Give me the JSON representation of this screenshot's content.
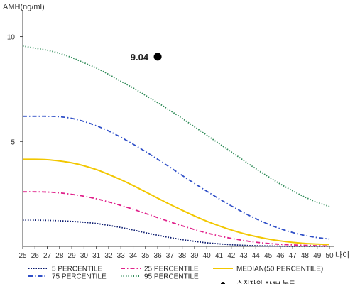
{
  "chart_data": {
    "type": "line",
    "ylabel": "AMH(ng/ml)",
    "xlabel": "나이",
    "xlim": [
      25,
      50
    ],
    "ylim": [
      0,
      11
    ],
    "yticks": [
      5,
      10
    ],
    "x": [
      25,
      26,
      27,
      28,
      29,
      30,
      31,
      32,
      33,
      34,
      35,
      36,
      37,
      38,
      39,
      40,
      41,
      42,
      43,
      44,
      45,
      46,
      47,
      48,
      49,
      50
    ],
    "grid": false,
    "legend_position": "bottom",
    "series": [
      {
        "name": "5 PERCENTILE",
        "color": "#0a1a6e",
        "style": "dotted",
        "values": [
          1.25,
          1.25,
          1.24,
          1.22,
          1.19,
          1.15,
          1.09,
          1.0,
          0.9,
          0.78,
          0.65,
          0.53,
          0.42,
          0.32,
          0.24,
          0.17,
          0.12,
          0.08,
          0.05,
          0.03,
          0.02,
          0.01,
          0.0,
          0.0,
          0.0,
          0.0
        ]
      },
      {
        "name": "25 PERCENTILE",
        "color": "#e0208a",
        "style": "dashdot",
        "values": [
          2.6,
          2.6,
          2.59,
          2.55,
          2.48,
          2.39,
          2.27,
          2.12,
          1.95,
          1.77,
          1.57,
          1.37,
          1.17,
          0.98,
          0.8,
          0.64,
          0.5,
          0.38,
          0.28,
          0.2,
          0.14,
          0.1,
          0.07,
          0.05,
          0.03,
          0.02
        ]
      },
      {
        "name": "MEDIAN(50 PERCENTILE)",
        "color": "#f2c700",
        "style": "solid",
        "values": [
          4.15,
          4.15,
          4.13,
          4.07,
          3.98,
          3.84,
          3.66,
          3.43,
          3.18,
          2.9,
          2.6,
          2.3,
          2.0,
          1.72,
          1.45,
          1.2,
          0.98,
          0.78,
          0.61,
          0.47,
          0.35,
          0.26,
          0.19,
          0.14,
          0.11,
          0.09
        ]
      },
      {
        "name": "75 PERCENTILE",
        "color": "#3050c8",
        "style": "dashdot",
        "values": [
          6.2,
          6.2,
          6.2,
          6.18,
          6.1,
          5.95,
          5.75,
          5.5,
          5.2,
          4.87,
          4.52,
          4.15,
          3.77,
          3.38,
          3.0,
          2.63,
          2.27,
          1.93,
          1.61,
          1.32,
          1.06,
          0.84,
          0.66,
          0.52,
          0.42,
          0.35
        ]
      },
      {
        "name": "95 PERCENTILE",
        "color": "#2e8b57",
        "style": "dotted",
        "values": [
          9.55,
          9.45,
          9.35,
          9.2,
          9.0,
          8.75,
          8.5,
          8.2,
          7.87,
          7.55,
          7.2,
          6.85,
          6.48,
          6.1,
          5.7,
          5.3,
          4.9,
          4.5,
          4.1,
          3.7,
          3.33,
          2.97,
          2.65,
          2.35,
          2.1,
          1.9
        ]
      }
    ],
    "highlight": {
      "name": "수진자의 AMH 농도",
      "x": 36,
      "y": 9.04,
      "label": "9.04",
      "color": "#000000"
    }
  }
}
